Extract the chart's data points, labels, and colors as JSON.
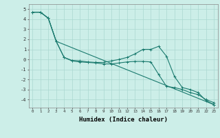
{
  "xlabel": "Humidex (Indice chaleur)",
  "bg_color": "#cceee8",
  "line_color": "#1a7a6e",
  "grid_color": "#aad8d0",
  "xlim": [
    -0.5,
    23.5
  ],
  "ylim": [
    -4.8,
    5.5
  ],
  "yticks": [
    -4,
    -3,
    -2,
    -1,
    0,
    1,
    2,
    3,
    4,
    5
  ],
  "xticks": [
    0,
    1,
    2,
    3,
    4,
    5,
    6,
    7,
    8,
    9,
    10,
    11,
    12,
    13,
    14,
    15,
    16,
    17,
    18,
    19,
    20,
    21,
    22,
    23
  ],
  "line1_x": [
    0,
    1,
    2,
    3,
    4,
    5,
    6,
    7,
    8,
    9,
    10,
    11,
    12,
    13,
    14,
    15,
    16,
    17,
    18,
    19,
    20,
    21,
    22,
    23
  ],
  "line1_y": [
    4.7,
    4.7,
    4.1,
    1.8,
    0.2,
    -0.15,
    -0.25,
    -0.3,
    -0.35,
    -0.45,
    -0.45,
    -0.35,
    -0.25,
    -0.2,
    -0.2,
    -0.25,
    -1.5,
    -2.7,
    -2.8,
    -3.0,
    -3.3,
    -3.5,
    -4.0,
    -4.3
  ],
  "line2_x": [
    0,
    1,
    2,
    3,
    4,
    5,
    6,
    7,
    8,
    9,
    10,
    11,
    12,
    13,
    14,
    15,
    16,
    17,
    18,
    19,
    20,
    21,
    22,
    23
  ],
  "line2_y": [
    4.7,
    4.7,
    4.1,
    1.8,
    0.2,
    -0.1,
    -0.15,
    -0.25,
    -0.3,
    -0.3,
    -0.15,
    0.0,
    0.2,
    0.55,
    1.0,
    1.0,
    1.3,
    0.3,
    -1.7,
    -2.8,
    -3.0,
    -3.3,
    -4.1,
    -4.5
  ],
  "line3_x": [
    0,
    1,
    2,
    3,
    23
  ],
  "line3_y": [
    4.7,
    4.7,
    4.1,
    1.8,
    -4.5
  ]
}
